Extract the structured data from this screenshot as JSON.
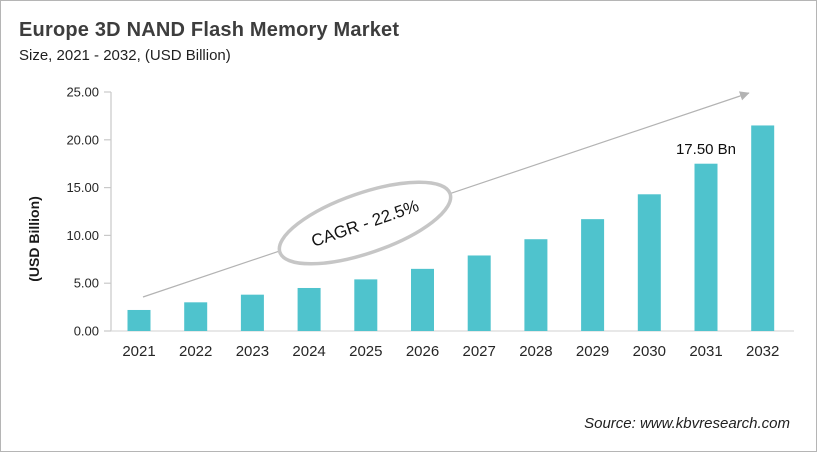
{
  "header": {
    "title": "Europe 3D NAND Flash Memory Market",
    "subtitle": "Size, 2021 - 2032, (USD Billion)"
  },
  "chart_data": {
    "type": "bar",
    "title": "Europe 3D NAND Flash Memory Market",
    "subtitle": "Size, 2021 - 2032, (USD Billion)",
    "categories": [
      "2021",
      "2022",
      "2023",
      "2024",
      "2025",
      "2026",
      "2027",
      "2028",
      "2029",
      "2030",
      "2031",
      "2032"
    ],
    "values": [
      2.2,
      3.0,
      3.8,
      4.5,
      5.4,
      6.5,
      7.9,
      9.6,
      11.7,
      14.3,
      17.5,
      21.5
    ],
    "xlabel": "",
    "ylabel": "(USD Billion)",
    "ylim": [
      0,
      25
    ],
    "ytick_step": 5,
    "ytick_labels": [
      "0.00",
      "5.00",
      "10.00",
      "15.00",
      "20.00",
      "25.00"
    ],
    "grid": false,
    "legend": false,
    "bar_color": "#4FC3CD",
    "annotations": {
      "cagr_label": "CAGR - 22.5%",
      "data_label": {
        "category": "2031",
        "value": 17.5,
        "text": "17.50 Bn"
      },
      "trend_arrow": true
    }
  },
  "colors": {
    "bar": "#4FC3CD",
    "y_axis_line": "#c9c9c9",
    "x_axis_line": "#d9d9d9",
    "arrow": "#b3b3b3",
    "ellipse_stroke": "#c6c6c6",
    "title_text": "#3d3d3d",
    "body_text": "#262626"
  },
  "footer": {
    "source": "Source: www.kbvresearch.com"
  }
}
